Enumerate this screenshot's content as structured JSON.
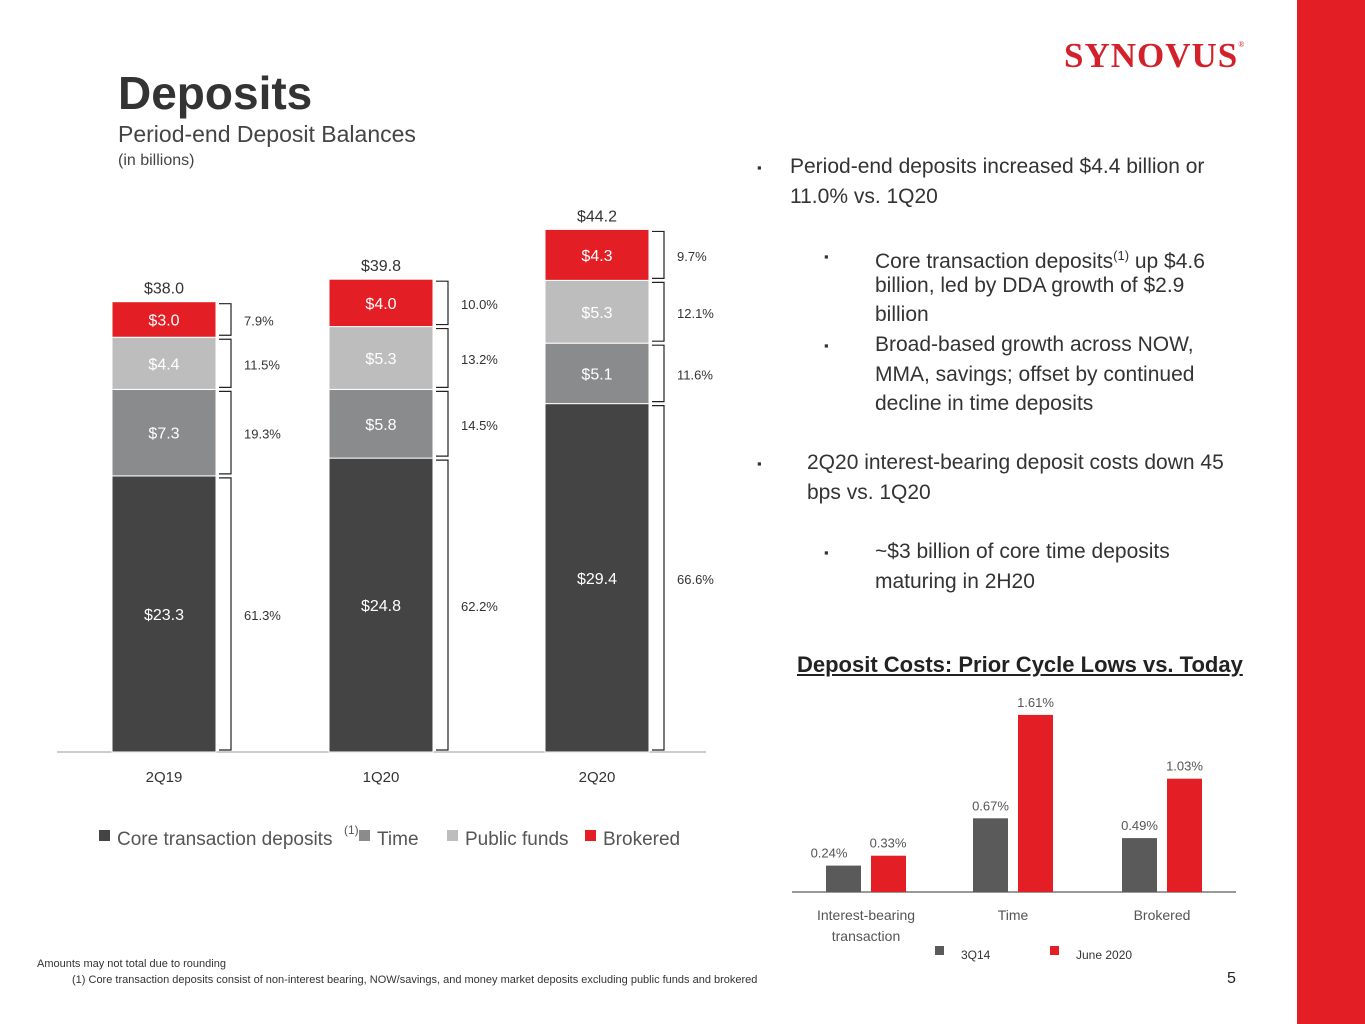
{
  "brand": {
    "name": "SYNOVUS",
    "mark": "®",
    "red": "#e31e24"
  },
  "header": {
    "title": "Deposits",
    "subtitle": "Period-end Deposit Balances",
    "units": "(in billions)"
  },
  "bullets": {
    "b1": "Period-end deposits increased $4.4 billion or",
    "b1b": "11.0% vs. 1Q20",
    "b1_sub1a_pre": "Core transaction deposits",
    "b1_sub1a_sup": "(1)",
    "b1_sub1a_post": " up $4.6",
    "b1_sub1b": "billion, led by DDA growth of $2.9",
    "b1_sub1c": "billion",
    "b1_sub2a": "Broad-based growth across NOW,",
    "b1_sub2b": "MMA, savings; offset by continued",
    "b1_sub2c": "decline in time deposits",
    "b2a": "2Q20 interest-bearing deposit costs down 45",
    "b2b": "bps vs. 1Q20",
    "b2_sub1a": "~$3 billion of core time deposits",
    "b2_sub1b": "maturing in 2H20",
    "marker": "▪"
  },
  "chart_data": [
    {
      "type": "bar",
      "stacked": true,
      "title": "Period-end Deposit Balances",
      "ylabel": "(in billions)",
      "categories": [
        "2Q19",
        "1Q20",
        "2Q20"
      ],
      "totals": [
        "$38.0",
        "$39.8",
        "$44.2"
      ],
      "total_values": [
        38.0,
        39.8,
        44.2
      ],
      "series": [
        {
          "name": "Core transaction deposits",
          "legend_sup": "(1)",
          "color": "#444444",
          "text_color": "#ffffff",
          "values": [
            23.3,
            24.8,
            29.4
          ],
          "labels": [
            "$23.3",
            "$24.8",
            "$29.4"
          ],
          "pct": [
            "61.3%",
            "62.2%",
            "66.6%"
          ]
        },
        {
          "name": "Time",
          "color": "#8a8b8c",
          "text_color": "#ffffff",
          "values": [
            7.3,
            5.8,
            5.1
          ],
          "labels": [
            "$7.3",
            "$5.8",
            "$5.1"
          ],
          "pct": [
            "19.3%",
            "14.5%",
            "11.6%"
          ]
        },
        {
          "name": "Public funds",
          "color": "#bdbdbd",
          "text_color": "#ffffff",
          "values": [
            4.4,
            5.3,
            5.3
          ],
          "labels": [
            "$4.4",
            "$5.3",
            "$5.3"
          ],
          "pct": [
            "11.5%",
            "13.2%",
            "12.1%"
          ]
        },
        {
          "name": "Brokered",
          "color": "#e31e24",
          "text_color": "#ffffff",
          "values": [
            3.0,
            4.0,
            4.3
          ],
          "labels": [
            "$3.0",
            "$4.0",
            "$4.3"
          ],
          "pct": [
            "7.9%",
            "10.0%",
            "9.7%"
          ]
        }
      ],
      "legend": "bottom"
    },
    {
      "type": "bar",
      "title": "Deposit Costs: Prior Cycle Lows vs. Today",
      "categories": [
        "Interest-bearing transaction",
        "Time",
        "Brokered"
      ],
      "category_lines": [
        [
          "Interest-bearing",
          "transaction"
        ],
        [
          "Time"
        ],
        [
          "Brokered"
        ]
      ],
      "series": [
        {
          "name": "3Q14",
          "color": "#5a5a5a",
          "values": [
            0.24,
            0.67,
            0.49
          ],
          "labels": [
            "0.24%",
            "0.67%",
            "0.49%"
          ]
        },
        {
          "name": "June 2020",
          "color": "#e31e24",
          "values": [
            0.33,
            1.61,
            1.03
          ],
          "labels": [
            "0.33%",
            "1.61%",
            "1.03%"
          ]
        }
      ],
      "legend": "bottom-right"
    }
  ],
  "footer": {
    "note": "Amounts may not total due to rounding",
    "footnote": "(1) Core transaction deposits consist of non-interest bearing, NOW/savings, and money market deposits excluding public funds and brokered",
    "page": "5"
  }
}
